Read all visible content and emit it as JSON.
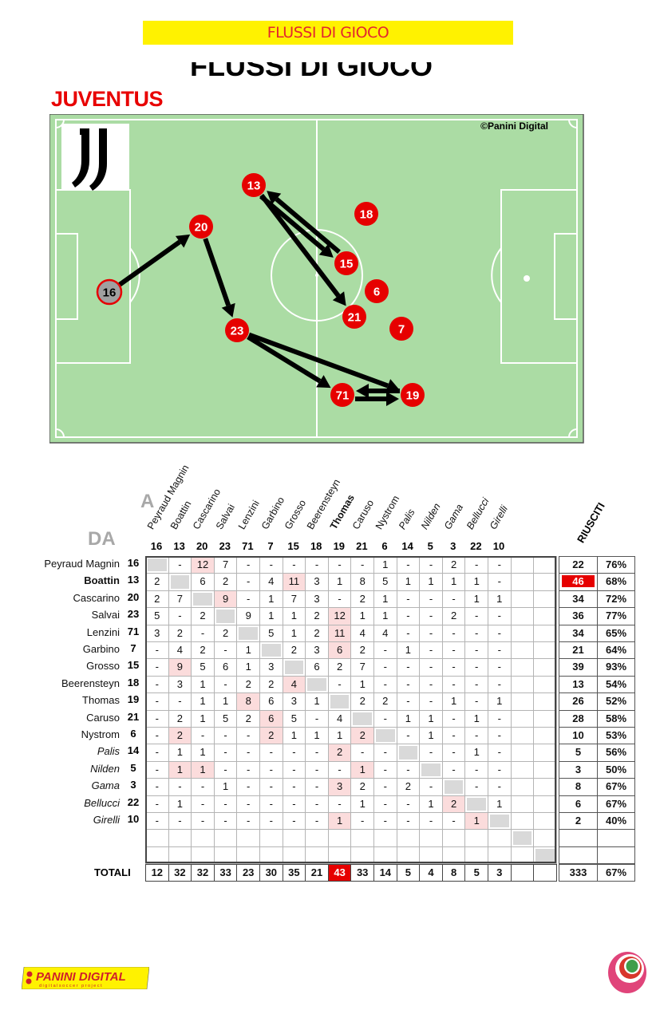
{
  "header": {
    "banner": "FLUSSI DI GIOCO",
    "cut_title": "FLUSSI DI GIOCO",
    "team": "JUVENTUS"
  },
  "pitch": {
    "copyright": "©Panini Digital",
    "colors": {
      "grass": "#abdca4",
      "player": "#e60000",
      "highlight_player": "#a0a0a0",
      "arrow": "#000000"
    },
    "players": [
      {
        "num": "16",
        "highlight": true
      },
      {
        "num": "20"
      },
      {
        "num": "13"
      },
      {
        "num": "18"
      },
      {
        "num": "15"
      },
      {
        "num": "6"
      },
      {
        "num": "21"
      },
      {
        "num": "7"
      },
      {
        "num": "23"
      },
      {
        "num": "71"
      },
      {
        "num": "19"
      }
    ],
    "flows": [
      [
        "16",
        "20"
      ],
      [
        "20",
        "23"
      ],
      [
        "13",
        "15"
      ],
      [
        "15",
        "13"
      ],
      [
        "13",
        "21"
      ],
      [
        "23",
        "71"
      ],
      [
        "23",
        "19"
      ],
      [
        "71",
        "19"
      ],
      [
        "19",
        "71"
      ]
    ]
  },
  "table": {
    "label_to": "A",
    "label_from": "DA",
    "riusciti_label": "RIUSCITI",
    "totals_label": "TOTALI",
    "colors": {
      "pink": "#fbdcdc",
      "diag": "#d9d9d9",
      "max": "#e60000"
    },
    "columns": [
      {
        "name": "Peyraud Magnin",
        "num": "16"
      },
      {
        "name": "Boattin",
        "num": "13"
      },
      {
        "name": "Cascarino",
        "num": "20"
      },
      {
        "name": "Salvai",
        "num": "23"
      },
      {
        "name": "Lenzini",
        "num": "71"
      },
      {
        "name": "Garbino",
        "num": "7"
      },
      {
        "name": "Grosso",
        "num": "15"
      },
      {
        "name": "Beerensteyn",
        "num": "18"
      },
      {
        "name": "Thomas",
        "num": "19",
        "bold": true
      },
      {
        "name": "Caruso",
        "num": "21"
      },
      {
        "name": "Nystrom",
        "num": "6"
      },
      {
        "name": "Palis",
        "num": "14",
        "italic": true
      },
      {
        "name": "Nilden",
        "num": "5",
        "italic": true
      },
      {
        "name": "Gama",
        "num": "3",
        "italic": true
      },
      {
        "name": "Bellucci",
        "num": "22",
        "italic": true
      },
      {
        "name": "Girelli",
        "num": "10",
        "italic": true
      }
    ],
    "rows": [
      {
        "name": "Peyraud Magnin",
        "num": "16",
        "values": [
          "",
          "-",
          "12",
          "7",
          "-",
          "-",
          "-",
          "-",
          "-",
          "-",
          "1",
          "-",
          "-",
          "2",
          "-",
          "-"
        ],
        "pink": [
          2
        ],
        "riusciti": "22",
        "pct": "76%"
      },
      {
        "name": "Boattin",
        "num": "13",
        "bold": true,
        "values": [
          "2",
          "",
          "6",
          "2",
          "-",
          "4",
          "11",
          "3",
          "1",
          "8",
          "5",
          "1",
          "1",
          "1",
          "1",
          "-"
        ],
        "pink": [
          6
        ],
        "riusciti": "46",
        "riusciti_max": true,
        "pct": "68%"
      },
      {
        "name": "Cascarino",
        "num": "20",
        "values": [
          "2",
          "7",
          "",
          "9",
          "-",
          "1",
          "7",
          "3",
          "-",
          "2",
          "1",
          "-",
          "-",
          "-",
          "1",
          "1"
        ],
        "pink": [
          3
        ],
        "riusciti": "34",
        "pct": "72%"
      },
      {
        "name": "Salvai",
        "num": "23",
        "values": [
          "5",
          "-",
          "2",
          "",
          "9",
          "1",
          "1",
          "2",
          "12",
          "1",
          "1",
          "-",
          "-",
          "2",
          "-",
          "-"
        ],
        "pink": [
          8
        ],
        "riusciti": "36",
        "pct": "77%"
      },
      {
        "name": "Lenzini",
        "num": "71",
        "values": [
          "3",
          "2",
          "-",
          "2",
          "",
          "5",
          "1",
          "2",
          "11",
          "4",
          "4",
          "-",
          "-",
          "-",
          "-",
          "-"
        ],
        "pink": [
          8
        ],
        "riusciti": "34",
        "pct": "65%"
      },
      {
        "name": "Garbino",
        "num": "7",
        "values": [
          "-",
          "4",
          "2",
          "-",
          "1",
          "",
          "2",
          "3",
          "6",
          "2",
          "-",
          "1",
          "-",
          "-",
          "-",
          "-"
        ],
        "pink": [
          8
        ],
        "riusciti": "21",
        "pct": "64%"
      },
      {
        "name": "Grosso",
        "num": "15",
        "values": [
          "-",
          "9",
          "5",
          "6",
          "1",
          "3",
          "",
          "6",
          "2",
          "7",
          "-",
          "-",
          "-",
          "-",
          "-",
          "-"
        ],
        "pink": [
          1
        ],
        "riusciti": "39",
        "pct": "93%"
      },
      {
        "name": "Beerensteyn",
        "num": "18",
        "values": [
          "-",
          "3",
          "1",
          "-",
          "2",
          "2",
          "4",
          "",
          "-",
          "1",
          "-",
          "-",
          "-",
          "-",
          "-",
          "-"
        ],
        "pink": [
          6
        ],
        "riusciti": "13",
        "pct": "54%"
      },
      {
        "name": "Thomas",
        "num": "19",
        "values": [
          "-",
          "-",
          "1",
          "1",
          "8",
          "6",
          "3",
          "1",
          "",
          "2",
          "2",
          "-",
          "-",
          "1",
          "-",
          "1"
        ],
        "pink": [
          4
        ],
        "riusciti": "26",
        "pct": "52%"
      },
      {
        "name": "Caruso",
        "num": "21",
        "values": [
          "-",
          "2",
          "1",
          "5",
          "2",
          "6",
          "5",
          "-",
          "4",
          "",
          "-",
          "1",
          "1",
          "-",
          "1",
          "-"
        ],
        "pink": [
          5
        ],
        "riusciti": "28",
        "pct": "58%"
      },
      {
        "name": "Nystrom",
        "num": "6",
        "values": [
          "-",
          "2",
          "-",
          "-",
          "-",
          "2",
          "1",
          "1",
          "1",
          "2",
          "",
          "-",
          "1",
          "-",
          "-",
          "-"
        ],
        "pink": [
          1,
          5,
          9
        ],
        "riusciti": "10",
        "pct": "53%"
      },
      {
        "name": "Palis",
        "num": "14",
        "italic": true,
        "values": [
          "-",
          "1",
          "1",
          "-",
          "-",
          "-",
          "-",
          "-",
          "2",
          "-",
          "-",
          "",
          "-",
          "-",
          "1",
          "-"
        ],
        "pink": [
          8
        ],
        "riusciti": "5",
        "pct": "56%"
      },
      {
        "name": "Nilden",
        "num": "5",
        "italic": true,
        "values": [
          "-",
          "1",
          "1",
          "-",
          "-",
          "-",
          "-",
          "-",
          "-",
          "1",
          "-",
          "-",
          "",
          "-",
          "-",
          "-"
        ],
        "pink": [
          1,
          2,
          9
        ],
        "riusciti": "3",
        "pct": "50%"
      },
      {
        "name": "Gama",
        "num": "3",
        "italic": true,
        "values": [
          "-",
          "-",
          "-",
          "1",
          "-",
          "-",
          "-",
          "-",
          "3",
          "2",
          "-",
          "2",
          "-",
          "",
          "-",
          "-"
        ],
        "pink": [
          8
        ],
        "riusciti": "8",
        "pct": "67%"
      },
      {
        "name": "Bellucci",
        "num": "22",
        "italic": true,
        "values": [
          "-",
          "1",
          "-",
          "-",
          "-",
          "-",
          "-",
          "-",
          "-",
          "1",
          "-",
          "-",
          "1",
          "2",
          "",
          "1"
        ],
        "pink": [
          13
        ],
        "riusciti": "6",
        "pct": "67%"
      },
      {
        "name": "Girelli",
        "num": "10",
        "italic": true,
        "values": [
          "-",
          "-",
          "-",
          "-",
          "-",
          "-",
          "-",
          "-",
          "1",
          "-",
          "-",
          "-",
          "-",
          "-",
          "1",
          ""
        ],
        "pink": [
          8,
          14
        ],
        "riusciti": "2",
        "pct": "40%"
      }
    ],
    "totals": {
      "values": [
        "12",
        "32",
        "32",
        "33",
        "23",
        "30",
        "35",
        "21",
        "43",
        "33",
        "14",
        "5",
        "4",
        "8",
        "5",
        "3"
      ],
      "max_index": 8,
      "riusciti": "333",
      "pct": "67%"
    }
  },
  "footer": {
    "left_logo": "PANINI DIGITAL",
    "left_logo_sub": "digitalsoccer project"
  }
}
